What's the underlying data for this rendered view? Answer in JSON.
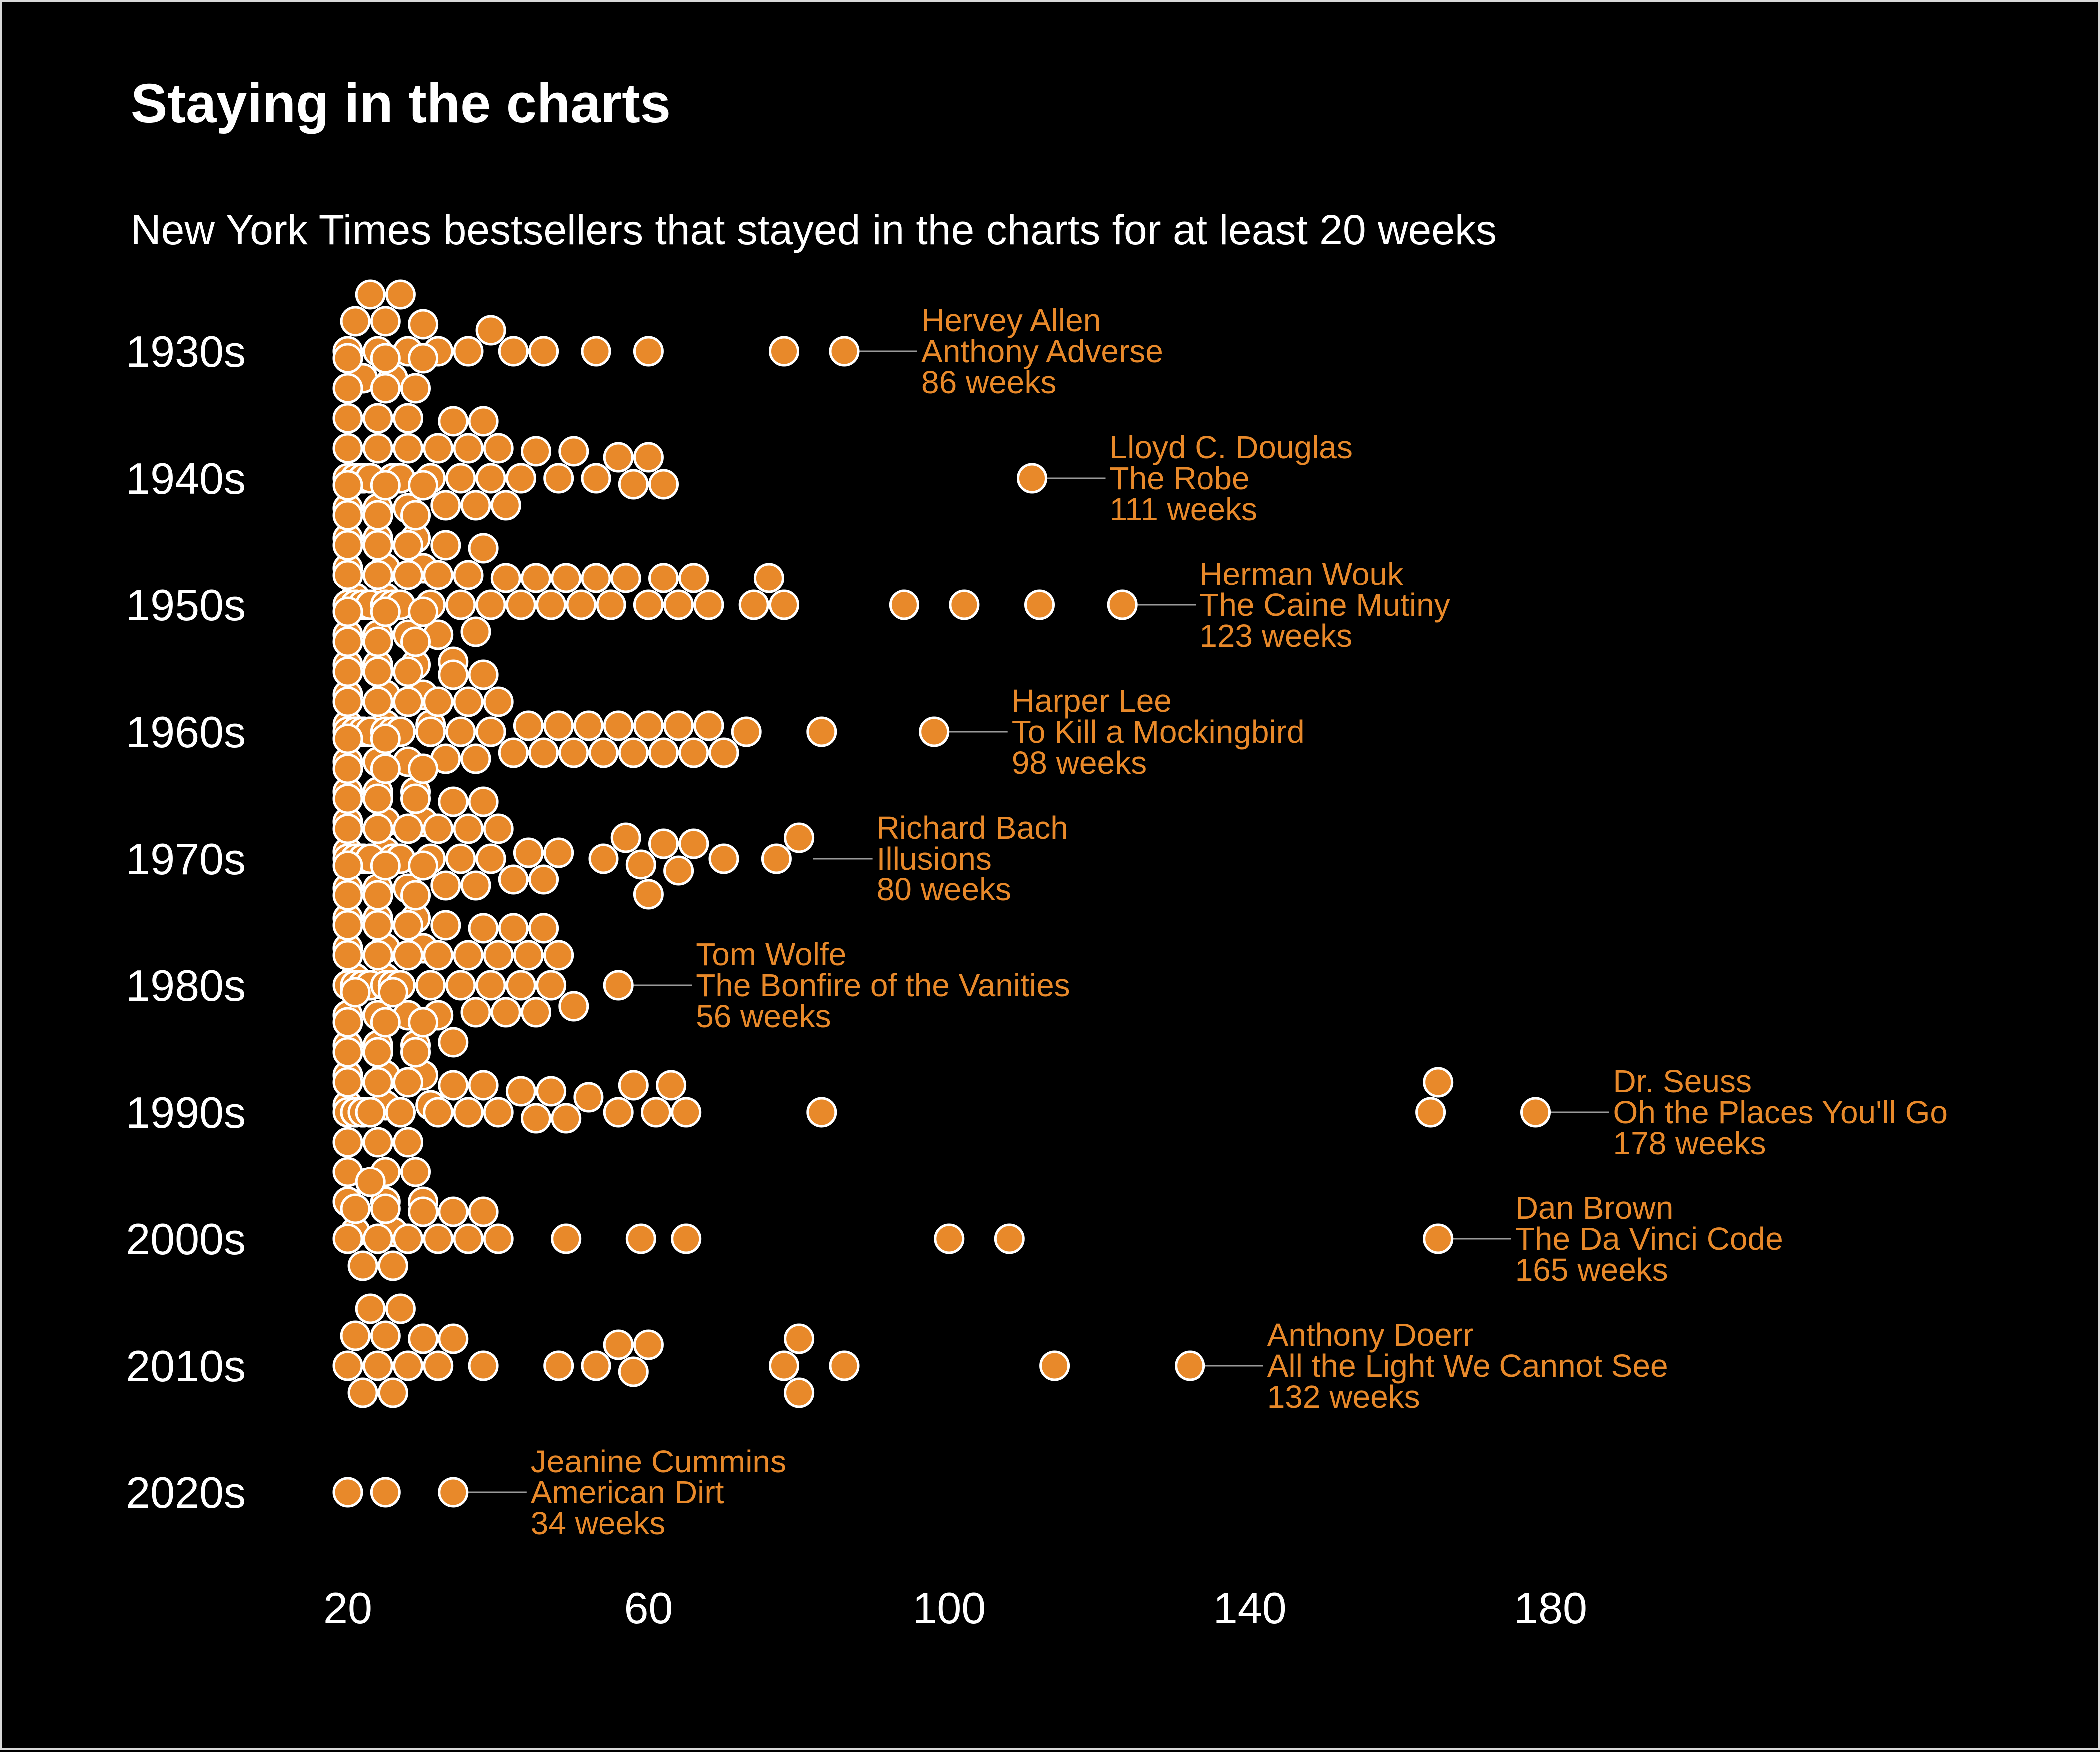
{
  "title": "Staying in the charts",
  "subtitle": "New York Times bestsellers that stayed in the charts for at least 20 weeks",
  "colors": {
    "background": "#000000",
    "point": "#e8892a",
    "point_stroke": "#ffffff",
    "text": "#ffffff",
    "annotation": "#e8892a"
  },
  "chart_data": {
    "type": "scatter",
    "title": "Staying in the charts",
    "subtitle": "New York Times bestsellers that stayed in the charts for at least 20 weeks",
    "xlabel": "",
    "ylabel": "",
    "xlim": [
      12,
      232
    ],
    "x_ticks": [
      20,
      60,
      100,
      140,
      180
    ],
    "grid": false,
    "categories": [
      "1930s",
      "1940s",
      "1950s",
      "1960s",
      "1970s",
      "1980s",
      "1990s",
      "2000s",
      "2010s",
      "2020s"
    ],
    "series": [
      {
        "decade": "1930s",
        "weeks": [
          20,
          21,
          22,
          23,
          24,
          25,
          26,
          27,
          28,
          30,
          32,
          36,
          39,
          42,
          46,
          53,
          60,
          78,
          86
        ]
      },
      {
        "decade": "1940s",
        "weeks": [
          20,
          20,
          20,
          20,
          20,
          20,
          20,
          20,
          21,
          21,
          21,
          21,
          21,
          21,
          21,
          22,
          22,
          22,
          22,
          22,
          22,
          23,
          23,
          23,
          23,
          23,
          24,
          24,
          24,
          24,
          25,
          25,
          25,
          25,
          26,
          26,
          26,
          26,
          27,
          27,
          27,
          28,
          28,
          28,
          29,
          29,
          30,
          30,
          31,
          32,
          33,
          34,
          35,
          36,
          37,
          38,
          39,
          40,
          41,
          43,
          45,
          48,
          50,
          53,
          56,
          58,
          60,
          62,
          111
        ]
      },
      {
        "decade": "1950s",
        "weeks": [
          20,
          20,
          20,
          20,
          20,
          20,
          20,
          20,
          20,
          21,
          21,
          21,
          21,
          21,
          21,
          21,
          21,
          22,
          22,
          22,
          22,
          22,
          22,
          22,
          23,
          23,
          23,
          23,
          23,
          23,
          24,
          24,
          24,
          24,
          24,
          25,
          25,
          25,
          25,
          25,
          26,
          26,
          26,
          26,
          27,
          27,
          27,
          28,
          28,
          28,
          29,
          29,
          30,
          30,
          31,
          31,
          32,
          32,
          33,
          34,
          35,
          36,
          37,
          38,
          39,
          41,
          43,
          45,
          47,
          49,
          51,
          53,
          55,
          57,
          60,
          62,
          64,
          66,
          68,
          74,
          76,
          78,
          94,
          102,
          112,
          123
        ]
      },
      {
        "decade": "1960s",
        "weeks": [
          20,
          20,
          20,
          20,
          20,
          20,
          20,
          20,
          20,
          21,
          21,
          21,
          21,
          21,
          21,
          21,
          21,
          22,
          22,
          22,
          22,
          22,
          22,
          22,
          23,
          23,
          23,
          23,
          23,
          23,
          24,
          24,
          24,
          24,
          24,
          25,
          25,
          25,
          25,
          26,
          26,
          26,
          26,
          27,
          27,
          27,
          28,
          28,
          28,
          29,
          29,
          30,
          30,
          31,
          32,
          33,
          34,
          35,
          36,
          37,
          38,
          39,
          40,
          42,
          44,
          46,
          48,
          50,
          52,
          54,
          56,
          58,
          60,
          62,
          64,
          66,
          68,
          70,
          73,
          83,
          98
        ]
      },
      {
        "decade": "1970s",
        "weeks": [
          20,
          20,
          20,
          20,
          20,
          20,
          20,
          20,
          21,
          21,
          21,
          21,
          21,
          21,
          21,
          22,
          22,
          22,
          22,
          22,
          22,
          23,
          23,
          23,
          23,
          23,
          24,
          24,
          24,
          24,
          25,
          25,
          25,
          25,
          26,
          26,
          26,
          27,
          27,
          27,
          28,
          28,
          29,
          29,
          30,
          30,
          31,
          32,
          33,
          34,
          35,
          36,
          37,
          38,
          39,
          40,
          42,
          44,
          46,
          48,
          54,
          57,
          59,
          60,
          62,
          64,
          66,
          70,
          77,
          80
        ]
      },
      {
        "decade": "1980s",
        "weeks": [
          20,
          20,
          20,
          20,
          20,
          20,
          20,
          20,
          20,
          21,
          21,
          21,
          21,
          21,
          21,
          21,
          21,
          22,
          22,
          22,
          22,
          22,
          22,
          22,
          23,
          23,
          23,
          23,
          23,
          23,
          24,
          24,
          24,
          24,
          24,
          25,
          25,
          25,
          25,
          26,
          26,
          26,
          26,
          27,
          27,
          27,
          28,
          28,
          28,
          29,
          29,
          30,
          30,
          31,
          31,
          32,
          32,
          33,
          34,
          35,
          36,
          37,
          38,
          39,
          40,
          41,
          42,
          43,
          44,
          45,
          46,
          47,
          48,
          50,
          56
        ]
      },
      {
        "decade": "1990s",
        "weeks": [
          20,
          20,
          20,
          20,
          20,
          20,
          20,
          21,
          21,
          21,
          21,
          21,
          21,
          22,
          22,
          22,
          22,
          22,
          23,
          23,
          23,
          23,
          24,
          24,
          24,
          25,
          25,
          25,
          26,
          26,
          27,
          27,
          28,
          28,
          29,
          29,
          30,
          30,
          32,
          34,
          36,
          38,
          40,
          43,
          45,
          47,
          49,
          52,
          56,
          58,
          61,
          63,
          65,
          83,
          164,
          165,
          178
        ]
      },
      {
        "decade": "2000s",
        "weeks": [
          20,
          21,
          22,
          23,
          24,
          25,
          26,
          28,
          30,
          32,
          34,
          36,
          38,
          40,
          49,
          59,
          65,
          100,
          108,
          165
        ]
      },
      {
        "decade": "2010s",
        "weeks": [
          20,
          21,
          22,
          23,
          24,
          25,
          26,
          27,
          28,
          30,
          32,
          34,
          38,
          48,
          53,
          56,
          58,
          60,
          78,
          80,
          80,
          86,
          114,
          132
        ]
      },
      {
        "decade": "2020s",
        "weeks": [
          20,
          25,
          34
        ]
      }
    ],
    "annotations": [
      {
        "decade": "1930s",
        "weeks": 86,
        "author": "Hervey Allen",
        "book": "Anthony Adverse",
        "label": "86 weeks"
      },
      {
        "decade": "1940s",
        "weeks": 111,
        "author": "Lloyd C. Douglas",
        "book": "The Robe",
        "label": "111 weeks"
      },
      {
        "decade": "1950s",
        "weeks": 123,
        "author": "Herman Wouk",
        "book": "The Caine Mutiny",
        "label": "123 weeks"
      },
      {
        "decade": "1960s",
        "weeks": 98,
        "author": "Harper Lee",
        "book": "To Kill a Mockingbird",
        "label": "98 weeks"
      },
      {
        "decade": "1970s",
        "weeks": 80,
        "author": "Richard Bach",
        "book": "Illusions",
        "label": "80 weeks"
      },
      {
        "decade": "1980s",
        "weeks": 56,
        "author": "Tom Wolfe",
        "book": "The Bonfire of the Vanities",
        "label": "56 weeks"
      },
      {
        "decade": "1990s",
        "weeks": 178,
        "author": "Dr. Seuss",
        "book": "Oh the Places You'll Go",
        "label": "178 weeks"
      },
      {
        "decade": "2000s",
        "weeks": 165,
        "author": "Dan Brown",
        "book": "The Da Vinci Code",
        "label": "165 weeks"
      },
      {
        "decade": "2010s",
        "weeks": 132,
        "author": "Anthony Doerr",
        "book": "All the Light We Cannot See",
        "label": "132 weeks"
      },
      {
        "decade": "2020s",
        "weeks": 34,
        "author": "Jeanine Cummins",
        "book": "American Dirt",
        "label": "34 weeks"
      }
    ]
  }
}
